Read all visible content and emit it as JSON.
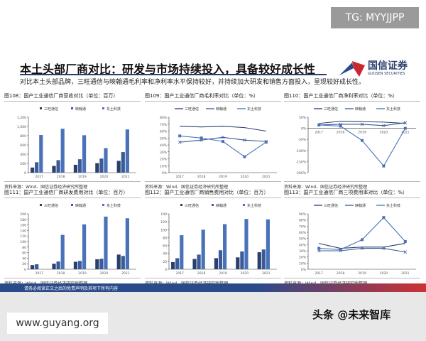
{
  "watermarks": {
    "tg": "TG: MYYJJPP",
    "site": "www.guyang.org",
    "toutiao": "头条 @未来智库"
  },
  "header": {
    "title": "本土头部厂商对比：研发与市场持续投入，具备较好成长性",
    "subtitle": "对比本土头部品牌，三旺通信与映翰通毛利率和净利率水平保持较好，并持续加大研发和销售方面投入，呈现较好成长性。",
    "logo_name": "国信证券",
    "logo_en": "GUOSEN SECURITIES"
  },
  "footer": {
    "disclaimer": "请务必阅读正文之后的免责声明及其项下所有内容"
  },
  "colors": {
    "s1": "#2b3f6b",
    "s2": "#3a5a9a",
    "s3": "#4a72b8"
  },
  "chart_data": [
    {
      "type": "bar",
      "title": "图108：国产工业通信厂商营收对比（单位：百万）",
      "source": "资料来源：Wind、国信证券经济研究所整理",
      "categories": [
        "2017",
        "2018",
        "2019",
        "2020",
        "2021"
      ],
      "ylim": [
        0,
        1200
      ],
      "yticks": [
        "0",
        "200",
        "400",
        "600",
        "800",
        "1,000",
        "1,200"
      ],
      "legend": "top",
      "series": [
        {
          "name": "三旺通信",
          "values": [
            110,
            145,
            170,
            205,
            255
          ]
        },
        {
          "name": "映翰通",
          "values": [
            225,
            270,
            290,
            305,
            445
          ]
        },
        {
          "name": "东土科技",
          "values": [
            815,
            950,
            810,
            530,
            935
          ]
        }
      ]
    },
    {
      "type": "line",
      "title": "图109：国产工业通信厂商毛利率对比（单位：%）",
      "source": "资料来源：Wind、国信证券经济研究所整理",
      "categories": [
        "2017",
        "2018",
        "2019",
        "2020",
        "2021"
      ],
      "ylim": [
        0,
        80
      ],
      "yticks": [
        "0%",
        "10%",
        "20%",
        "30%",
        "40%",
        "50%",
        "60%",
        "70%",
        "80%"
      ],
      "legend": "top",
      "series": [
        {
          "name": "三旺通信",
          "values": [
            67,
            66,
            67,
            65,
            60
          ]
        },
        {
          "name": "映翰通",
          "values": [
            44,
            47,
            51,
            47,
            45
          ]
        },
        {
          "name": "东土科技",
          "values": [
            53,
            50,
            45,
            23,
            44
          ]
        }
      ]
    },
    {
      "type": "line",
      "title": "图110：国产工业通信厂商净利率对比（单位：%）",
      "source": "资料来源：Wind、国信证券经济研究所整理",
      "categories": [
        "2017",
        "2018",
        "2019",
        "2020",
        "2021"
      ],
      "ylim": [
        -200,
        50
      ],
      "yticks": [
        "-200%",
        "-150%",
        "-100%",
        "-50%",
        "0%",
        "50%"
      ],
      "legend": "top",
      "series": [
        {
          "name": "三旺通信",
          "values": [
            22,
            32,
            30,
            28,
            22
          ]
        },
        {
          "name": "映翰通",
          "values": [
            15,
            18,
            18,
            12,
            25
          ]
        },
        {
          "name": "东土科技",
          "values": [
            15,
            10,
            -55,
            -170,
            0
          ]
        }
      ]
    },
    {
      "type": "bar",
      "title": "图111：国产工业通信厂商研发费用对比（单位：百万）",
      "source": "资料来源：Wind、国信证券经济研究所整理",
      "categories": [
        "2017",
        "2018",
        "2019",
        "2020",
        "2021"
      ],
      "ylim": [
        0,
        200
      ],
      "yticks": [
        "0",
        "20",
        "40",
        "60",
        "80",
        "100",
        "120",
        "140",
        "160",
        "180",
        "200"
      ],
      "legend": "top",
      "series": [
        {
          "name": "三旺通信",
          "values": [
            15,
            20,
            27,
            36,
            53
          ]
        },
        {
          "name": "映翰通",
          "values": [
            18,
            28,
            30,
            38,
            48
          ]
        },
        {
          "name": "东土科技",
          "values": [
            null,
            124,
            162,
            190,
            184
          ]
        }
      ]
    },
    {
      "type": "bar",
      "title": "图112：国产工业通信厂商销售费用对比（单位：百万）",
      "source": "资料来源：Wind、国信证券经济研究所整理",
      "categories": [
        "2017",
        "2018",
        "2019",
        "2020",
        "2021"
      ],
      "ylim": [
        0,
        140
      ],
      "yticks": [
        "0",
        "20",
        "40",
        "60",
        "80",
        "100",
        "120",
        "140"
      ],
      "legend": "top",
      "series": [
        {
          "name": "三旺通信",
          "values": [
            18,
            26,
            28,
            30,
            43
          ]
        },
        {
          "name": "映翰通",
          "values": [
            28,
            37,
            48,
            45,
            50
          ]
        },
        {
          "name": "东土科技",
          "values": [
            86,
            100,
            114,
            127,
            126
          ]
        }
      ]
    },
    {
      "type": "line",
      "title": "图113：国产工业通信厂商三项费用率对比（单位：%）",
      "source": "资料来源：Wind、国信证券经济研究所整理",
      "categories": [
        "2017",
        "2018",
        "2019",
        "2020",
        "2021"
      ],
      "ylim": [
        0,
        90
      ],
      "yticks": [
        "0%",
        "10%",
        "20%",
        "30%",
        "40%",
        "50%",
        "60%",
        "70%",
        "80%",
        "90%"
      ],
      "legend": "top",
      "series": [
        {
          "name": "三旺通信",
          "values": [
            42,
            34,
            36,
            36,
            42
          ]
        },
        {
          "name": "映翰通",
          "values": [
            30,
            30,
            34,
            34,
            28
          ]
        },
        {
          "name": "东土科技",
          "values": [
            34,
            32,
            48,
            84,
            45
          ]
        }
      ]
    }
  ]
}
